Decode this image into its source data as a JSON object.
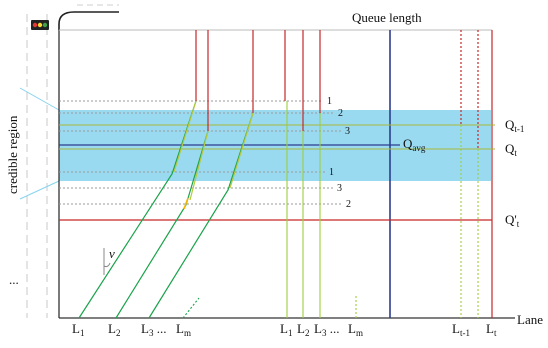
{
  "figure": {
    "title": "Queue length",
    "x_axis_label": "Lane",
    "side_label": "credible region",
    "velocity_label": "v",
    "ellipsis_left": "...",
    "q_labels": {
      "q_prev": {
        "base": "Q",
        "sub": "t-1"
      },
      "q_t": {
        "base": "Q",
        "sub": "t"
      },
      "q_prime": {
        "base": "Q'",
        "sub": "t"
      },
      "q_avg": {
        "base": "Q",
        "sub": "avg"
      }
    },
    "left_lane_labels": [
      {
        "base": "L",
        "sub": "1",
        "tail": ""
      },
      {
        "base": "L",
        "sub": "2",
        "tail": ""
      },
      {
        "base": "L",
        "sub": "3",
        "tail": " ..."
      },
      {
        "base": "L",
        "sub": "m",
        "tail": ""
      }
    ],
    "right_lane_labels": [
      {
        "base": "L",
        "sub": "1",
        "tail": ""
      },
      {
        "base": "L",
        "sub": "2",
        "tail": ""
      },
      {
        "base": "L",
        "sub": "3",
        "tail": " ..."
      },
      {
        "base": "L",
        "sub": "m",
        "tail": ""
      }
    ],
    "far_lane_labels": [
      {
        "base": "L",
        "sub": "t-1"
      },
      {
        "base": "L",
        "sub": "t"
      }
    ],
    "row_numbers_upper": [
      "1",
      "2",
      "3"
    ],
    "row_numbers_lower": [
      "1",
      "3",
      "2"
    ],
    "colors": {
      "credible_region": "#87d3ef",
      "trajectory_green": "#1aa34a",
      "trajectory_light_green": "#9dcf3c",
      "queue_red": "#c62828",
      "queue_line_blue": "#2d3e8f",
      "olive_line": "#a8b83a",
      "axis": "#555555",
      "lane_guide": "#cfcfcf"
    }
  }
}
